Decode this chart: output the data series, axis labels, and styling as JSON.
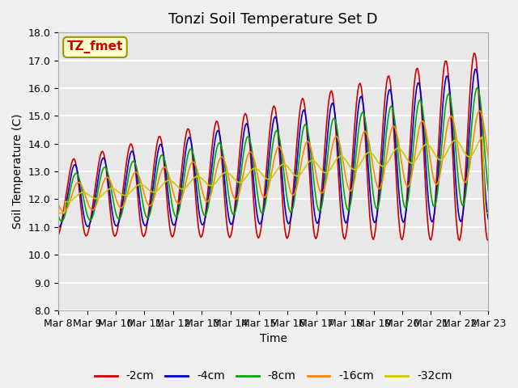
{
  "title": "Tonzi Soil Temperature Set D",
  "xlabel": "Time",
  "ylabel": "Soil Temperature (C)",
  "ylim": [
    8.0,
    18.0
  ],
  "yticks": [
    8.0,
    9.0,
    10.0,
    11.0,
    12.0,
    13.0,
    14.0,
    15.0,
    16.0,
    17.0,
    18.0
  ],
  "xtick_labels": [
    "Mar 8",
    "Mar 9",
    "Mar 10",
    "Mar 11",
    "Mar 12",
    "Mar 13",
    "Mar 14",
    "Mar 15",
    "Mar 16",
    "Mar 17",
    "Mar 18",
    "Mar 19",
    "Mar 20",
    "Mar 21",
    "Mar 22",
    "Mar 23"
  ],
  "series_colors": [
    "#cc0000",
    "#0000cc",
    "#00aa00",
    "#ff8800",
    "#cccc00"
  ],
  "series_labels": [
    "-2cm",
    "-4cm",
    "-8cm",
    "-16cm",
    "-32cm"
  ],
  "annotation_text": "TZ_fmet",
  "annotation_color": "#cc0000",
  "annotation_bg": "#ffffcc",
  "plot_bg_color": "#e8e8e8",
  "fig_bg_color": "#f0f0f0",
  "grid_color": "#ffffff",
  "title_fontsize": 13,
  "axis_fontsize": 10,
  "tick_fontsize": 9,
  "legend_fontsize": 10
}
